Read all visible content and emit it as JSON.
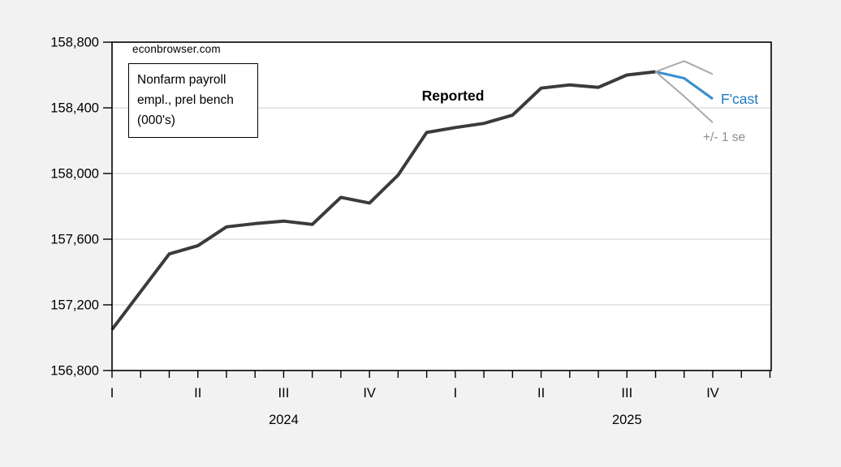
{
  "watermark": "econbrowser.com",
  "annotation_box": {
    "lines": [
      "Nonfarm payroll",
      "empl., prel bench",
      "(000's)"
    ]
  },
  "series_labels": {
    "reported": "Reported",
    "fcast": "F'cast",
    "se": "+/- 1 se"
  },
  "colors": {
    "background": "#f2f2f2",
    "plot_background": "#ffffff",
    "axis": "#000000",
    "gridline": "#d8d8d8",
    "reported_line": "#3b3b3b",
    "fcast_line": "#3a8fcd",
    "fcast_text": "#1d78c0",
    "se_line": "#a8a8a8",
    "se_text": "#8d8d8d"
  },
  "chart_data": {
    "type": "line",
    "title": "Nonfarm payroll empl., prel bench (000's)",
    "source_watermark": "econbrowser.com",
    "frequency": "monthly",
    "x_start": "2024-01",
    "x_end": "2025-12",
    "months_shown": 24,
    "grid": "horizontal-only",
    "y_axis": {
      "min": 156800,
      "max": 158800,
      "tick_step": 400,
      "ticks": [
        {
          "value": 158800,
          "label": "158,800"
        },
        {
          "value": 158400,
          "label": "158,400"
        },
        {
          "value": 158000,
          "label": "158,000"
        },
        {
          "value": 157600,
          "label": "157,600"
        },
        {
          "value": 157200,
          "label": "157,200"
        },
        {
          "value": 156800,
          "label": "156,800"
        }
      ]
    },
    "x_axis": {
      "quarter_labels": [
        {
          "label": "I",
          "month_index": 0
        },
        {
          "label": "II",
          "month_index": 3
        },
        {
          "label": "III",
          "month_index": 6
        },
        {
          "label": "IV",
          "month_index": 9
        },
        {
          "label": "I",
          "month_index": 12
        },
        {
          "label": "II",
          "month_index": 15
        },
        {
          "label": "III",
          "month_index": 18
        },
        {
          "label": "IV",
          "month_index": 21
        }
      ],
      "year_labels": [
        {
          "label": "2024",
          "month_index": 6
        },
        {
          "label": "2025",
          "month_index": 18
        }
      ]
    },
    "series": [
      {
        "name": "Reported",
        "color_key": "reported_line",
        "line_width": 4,
        "start_index": 0,
        "values": [
          157050,
          157280,
          157510,
          157560,
          157675,
          157695,
          157710,
          157690,
          157855,
          157820,
          157990,
          158250,
          158280,
          158305,
          158355,
          158520,
          158540,
          158525,
          158600,
          158620
        ]
      },
      {
        "name": "F'cast",
        "color_key": "fcast_line",
        "line_width": 3.2,
        "start_index": 19,
        "values": [
          158620,
          158580,
          158455
        ]
      },
      {
        "name": "+1 se",
        "color_key": "se_line",
        "line_width": 2,
        "start_index": 19,
        "values": [
          158620,
          158685,
          158605
        ]
      },
      {
        "name": "-1 se",
        "color_key": "se_line",
        "line_width": 2,
        "start_index": 19,
        "values": [
          158620,
          158470,
          158310
        ]
      }
    ]
  }
}
